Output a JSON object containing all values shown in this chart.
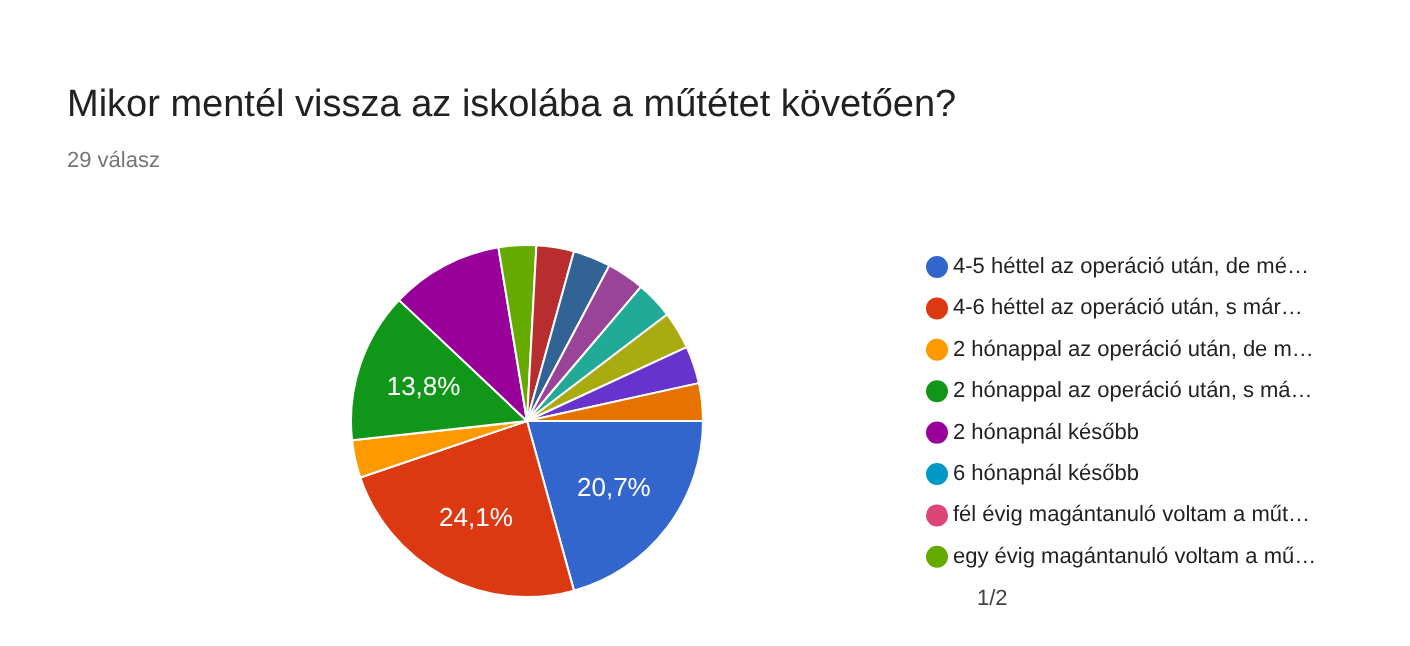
{
  "chart_data": {
    "type": "pie",
    "title": "Mikor mentél vissza az iskolába a műtétet követően?",
    "subtitle": "29 válasz",
    "categories": [
      "4-5 héttel az operáció után, de mé…",
      "4-6 héttel az operáció után, s már…",
      "2 hónappal az operáció után, de m…",
      "2 hónappal az operáció után, s má…",
      "2 hónapnál később",
      "6 hónapnál később",
      "fél évig magántanuló voltam a műt…",
      "egy évig magántanuló voltam a mű…",
      null,
      null,
      null,
      null,
      null,
      null,
      null
    ],
    "values": [
      20.7,
      24.1,
      3.45,
      13.8,
      10.35,
      0,
      0,
      3.45,
      3.45,
      3.45,
      3.45,
      3.45,
      3.45,
      3.45,
      3.45
    ],
    "colors": [
      "#3366cc",
      "#dc3912",
      "#ff9900",
      "#109618",
      "#990099",
      "#0099c6",
      "#dd4477",
      "#66aa00",
      "#b82e2e",
      "#316395",
      "#994499",
      "#22aa99",
      "#aaaa11",
      "#6633cc",
      "#e67300"
    ],
    "value_labels": [
      "20,7%",
      "24,1%",
      null,
      "13,8%",
      null,
      null,
      null,
      null,
      null,
      null,
      null,
      null,
      null,
      null,
      null
    ],
    "legend": "right",
    "annotations": [
      "1/2"
    ]
  }
}
